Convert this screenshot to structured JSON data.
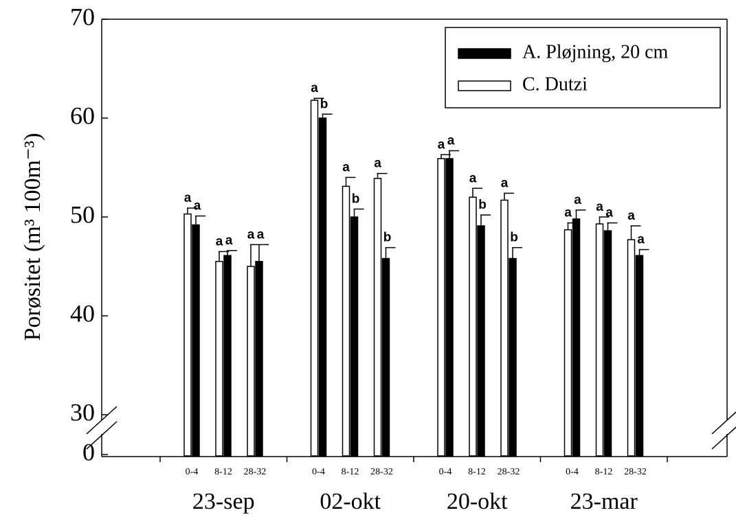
{
  "chart_data": {
    "type": "bar",
    "ylabel": "Porøsitet (m³ 100m⁻³)",
    "groups": [
      "23-sep",
      "02-okt",
      "20-okt",
      "23-mar"
    ],
    "categories": [
      "0-4",
      "8-12",
      "28-32",
      "0-4",
      "8-12",
      "28-32",
      "0-4",
      "8-12",
      "28-32",
      "0-4",
      "8-12",
      "28-32"
    ],
    "series": [
      {
        "name": "C. Dutzi",
        "color": "#ffffff",
        "values": [
          50.3,
          45.5,
          45.0,
          61.8,
          53.1,
          53.9,
          55.9,
          52.0,
          51.7,
          48.7,
          49.3,
          47.7
        ],
        "errors": [
          0.6,
          1.0,
          2.2,
          0.2,
          0.9,
          0.5,
          0.4,
          0.9,
          0.7,
          0.7,
          0.7,
          1.4
        ],
        "letters": [
          "a",
          "a",
          "a",
          "a",
          "a",
          "a",
          "a",
          "a",
          "a",
          "a",
          "a",
          "a"
        ]
      },
      {
        "name": "A. Pløjning, 20 cm",
        "color": "#000000",
        "values": [
          49.2,
          46.1,
          45.5,
          60.0,
          50.0,
          45.8,
          55.9,
          49.1,
          45.8,
          49.8,
          48.6,
          46.1
        ],
        "errors": [
          0.9,
          0.5,
          1.7,
          0.4,
          0.8,
          1.1,
          0.8,
          1.1,
          1.1,
          0.9,
          0.8,
          0.6
        ],
        "letters": [
          "a",
          "a",
          "a",
          "b",
          "b",
          "b",
          "a",
          "b",
          "b",
          "a",
          "a",
          "a"
        ]
      }
    ],
    "ylim": [
      0,
      70
    ],
    "yticks": [
      0,
      30,
      40,
      50,
      60,
      70
    ],
    "broken_axis": true,
    "legend": "upper right"
  }
}
